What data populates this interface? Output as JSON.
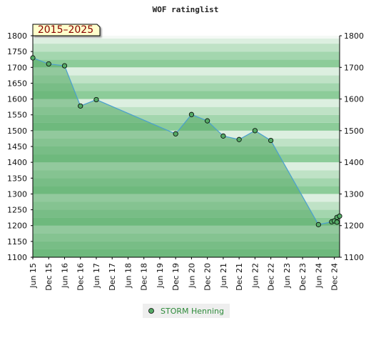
{
  "chart_data": {
    "type": "area",
    "title": "WOF ratinglist",
    "badge": "2015–2025",
    "ylim": [
      1100,
      1800
    ],
    "yticks": [
      1100,
      1150,
      1200,
      1250,
      1300,
      1350,
      1400,
      1450,
      1500,
      1550,
      1600,
      1650,
      1700,
      1750,
      1800
    ],
    "yticks_right": [
      1100,
      1200,
      1300,
      1400,
      1500,
      1600,
      1700,
      1800
    ],
    "xlim": [
      "2015-06",
      "2025-02"
    ],
    "xticks": [
      {
        "date": "2015-06",
        "label": "Jun 15"
      },
      {
        "date": "2015-12",
        "label": "Dec 15"
      },
      {
        "date": "2016-06",
        "label": "Jun 16"
      },
      {
        "date": "2016-12",
        "label": "Dec 16"
      },
      {
        "date": "2017-06",
        "label": "Jun 17"
      },
      {
        "date": "2017-12",
        "label": "Dec 17"
      },
      {
        "date": "2018-06",
        "label": "Jun 18"
      },
      {
        "date": "2018-12",
        "label": "Dec 18"
      },
      {
        "date": "2019-06",
        "label": "Jun 19"
      },
      {
        "date": "2019-12",
        "label": "Dec 19"
      },
      {
        "date": "2020-06",
        "label": "Jun 20"
      },
      {
        "date": "2020-12",
        "label": "Dec 20"
      },
      {
        "date": "2021-06",
        "label": "Jun 21"
      },
      {
        "date": "2021-12",
        "label": "Dec 21"
      },
      {
        "date": "2022-06",
        "label": "Jun 22"
      },
      {
        "date": "2022-12",
        "label": "Dec 22"
      },
      {
        "date": "2023-06",
        "label": "Jun 23"
      },
      {
        "date": "2023-12",
        "label": "Dec 23"
      },
      {
        "date": "2024-06",
        "label": "Jun 24"
      },
      {
        "date": "2024-12",
        "label": "Dec 24"
      }
    ],
    "series": [
      {
        "name": "STORM Henning",
        "color": "#55aa66",
        "line_color": "#4a9fd0",
        "points": [
          {
            "date": "2015-06",
            "y": 1730
          },
          {
            "date": "2015-12",
            "y": 1711
          },
          {
            "date": "2016-06",
            "y": 1705
          },
          {
            "date": "2016-12",
            "y": 1578
          },
          {
            "date": "2017-06",
            "y": 1598
          },
          {
            "date": "2019-12",
            "y": 1490
          },
          {
            "date": "2020-06",
            "y": 1551
          },
          {
            "date": "2020-12",
            "y": 1531
          },
          {
            "date": "2021-06",
            "y": 1483
          },
          {
            "date": "2021-12",
            "y": 1472
          },
          {
            "date": "2022-06",
            "y": 1500
          },
          {
            "date": "2022-12",
            "y": 1469
          },
          {
            "date": "2024-06",
            "y": 1203
          },
          {
            "date": "2024-11",
            "y": 1212
          },
          {
            "date": "2024-12",
            "y": 1215
          },
          {
            "date": "2025-01",
            "y": 1211
          },
          {
            "date": "2025-01",
            "y": 1226
          },
          {
            "date": "2025-02",
            "y": 1230
          }
        ]
      }
    ],
    "grid": true,
    "legend_position": "bottom"
  }
}
